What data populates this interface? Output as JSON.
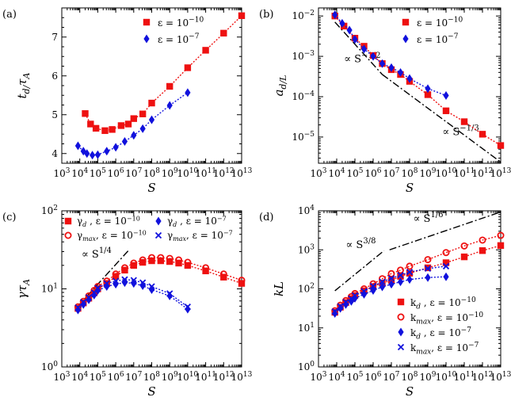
{
  "figure": {
    "panel_labels": [
      "(a)",
      "(b)",
      "(c)",
      "(d)"
    ],
    "colors": {
      "red": "#ee1111",
      "blue": "#1111dd",
      "black": "#000000"
    }
  },
  "chart_data": [
    {
      "id": "a",
      "type": "scatter",
      "xscale": "log",
      "yscale": "linear",
      "xlabel": "S",
      "ylabel": "t_d/τ_A",
      "xlim": [
        3,
        13
      ],
      "ylim": [
        3.75,
        7.75
      ],
      "xticks": [
        3,
        4,
        5,
        6,
        7,
        8,
        9,
        10,
        11,
        12,
        13
      ],
      "xtick_labels": [
        "10^3",
        "10^4",
        "10^5",
        "10^6",
        "10^7",
        "10^8",
        "10^9",
        "10^10",
        "10^11",
        "10^12",
        "10^13"
      ],
      "yticks": [
        4,
        5,
        6,
        7
      ],
      "ytick_labels": [
        "4",
        "5",
        "6",
        "7"
      ],
      "legend_position": "top-right",
      "series": [
        {
          "name": "ε = 10^-10",
          "color": "#ee1111",
          "marker": "square",
          "line": "dotted",
          "x": [
            4.3,
            4.6,
            4.9,
            5.4,
            5.8,
            6.3,
            6.7,
            7.0,
            7.5,
            8.0,
            9.0,
            10.0,
            11.0,
            12.0,
            13.0
          ],
          "y": [
            5.03,
            4.76,
            4.65,
            4.59,
            4.62,
            4.72,
            4.76,
            4.9,
            5.02,
            5.3,
            5.73,
            6.21,
            6.66,
            7.1,
            7.55
          ]
        },
        {
          "name": "ε = 10^-7",
          "color": "#1111dd",
          "marker": "diamond",
          "line": "dotted",
          "x": [
            3.9,
            4.2,
            4.4,
            4.7,
            5.0,
            5.5,
            6.0,
            6.5,
            7.0,
            7.5,
            8.0,
            9.0,
            10.0
          ],
          "y": [
            4.2,
            4.06,
            4.0,
            3.96,
            3.97,
            4.06,
            4.16,
            4.31,
            4.47,
            4.64,
            4.87,
            5.24,
            5.57
          ]
        }
      ],
      "annotations": []
    },
    {
      "id": "b",
      "type": "scatter",
      "xscale": "log",
      "yscale": "log",
      "xlabel": "S",
      "ylabel": "a_d/L",
      "xlim": [
        3,
        13
      ],
      "ylim": [
        -5.65,
        -1.8
      ],
      "xticks": [
        3,
        4,
        5,
        6,
        7,
        8,
        9,
        10,
        11,
        12,
        13
      ],
      "xtick_labels": [
        "10^3",
        "10^4",
        "10^5",
        "10^6",
        "10^7",
        "10^8",
        "10^9",
        "10^10",
        "10^11",
        "10^12",
        "10^13"
      ],
      "yticks": [
        -5,
        -4,
        -3,
        -2
      ],
      "ytick_labels": [
        "10^-5",
        "10^-4",
        "10^-3",
        "10^-2"
      ],
      "legend_position": "top-right",
      "series": [
        {
          "name": "ε = 10^-10",
          "color": "#ee1111",
          "marker": "square",
          "line": "dotted",
          "x": [
            3.9,
            4.4,
            5.0,
            5.5,
            6.0,
            6.5,
            7.0,
            7.5,
            8.0,
            9.0,
            10.0,
            11.0,
            12.0,
            13.0
          ],
          "y": [
            -2.0,
            -2.25,
            -2.55,
            -2.75,
            -2.98,
            -3.18,
            -3.33,
            -3.45,
            -3.62,
            -3.95,
            -4.35,
            -4.62,
            -4.93,
            -5.21
          ]
        },
        {
          "name": "ε = 10^-7",
          "color": "#1111dd",
          "marker": "diamond",
          "line": "dotted",
          "x": [
            3.9,
            4.3,
            4.7,
            5.0,
            5.5,
            6.0,
            6.5,
            7.0,
            7.5,
            8.0,
            9.0,
            10.0
          ],
          "y": [
            -1.97,
            -2.18,
            -2.35,
            -2.58,
            -2.82,
            -3.0,
            -3.18,
            -3.28,
            -3.4,
            -3.55,
            -3.8,
            -3.97
          ]
        }
      ],
      "reference_lines": [
        {
          "label": "∝ S^{-1/2}",
          "x": [
            3.9,
            6.5
          ],
          "y": [
            -2.15,
            -3.45
          ]
        },
        {
          "label": "∝ S^{-1/3}",
          "x": [
            6.5,
            13.0
          ],
          "y": [
            -3.45,
            -5.62
          ]
        }
      ],
      "annotations": [
        {
          "text": "∝ S",
          "sup": "−1/2",
          "at_x": 4.4,
          "at_y": -3.15
        },
        {
          "text": "∝ S",
          "sup": "−1/3",
          "at_x": 9.8,
          "at_y": -4.95
        }
      ]
    },
    {
      "id": "c",
      "type": "scatter",
      "xscale": "log",
      "yscale": "log",
      "xlabel": "S",
      "ylabel": "γτ_A",
      "xlim": [
        3,
        13
      ],
      "ylim": [
        0,
        2
      ],
      "xticks": [
        3,
        4,
        5,
        6,
        7,
        8,
        9,
        10,
        11,
        12,
        13
      ],
      "xtick_labels": [
        "10^3",
        "10^4",
        "10^5",
        "10^6",
        "10^7",
        "10^8",
        "10^9",
        "10^10",
        "10^11",
        "10^12",
        "10^13"
      ],
      "yticks": [
        0,
        1,
        2
      ],
      "ytick_labels": [
        "10^0",
        "10^1",
        "10^2"
      ],
      "legend_position": "top",
      "series": [
        {
          "name": "γ_d , ε = 10^-10",
          "color": "#ee1111",
          "marker": "square",
          "line": "dotted",
          "x": [
            3.9,
            4.2,
            4.5,
            4.8,
            5.0,
            5.5,
            6.0,
            6.5,
            7.0,
            7.5,
            8.0,
            8.5,
            9.0,
            9.5,
            10.0,
            11.0,
            12.0,
            13.0
          ],
          "y": [
            0.75,
            0.82,
            0.88,
            0.95,
            1.0,
            1.07,
            1.16,
            1.24,
            1.3,
            1.34,
            1.36,
            1.36,
            1.35,
            1.33,
            1.3,
            1.23,
            1.15,
            1.07
          ]
        },
        {
          "name": "γ_max, ε = 10^-10",
          "color": "#ee1111",
          "marker": "circle",
          "line": "dotted",
          "x": [
            3.9,
            4.2,
            4.5,
            4.8,
            5.0,
            5.5,
            6.0,
            6.5,
            7.0,
            7.5,
            8.0,
            8.5,
            9.0,
            9.5,
            10.0,
            11.0,
            12.0,
            13.0
          ],
          "y": [
            0.77,
            0.84,
            0.91,
            0.98,
            1.03,
            1.1,
            1.19,
            1.27,
            1.33,
            1.37,
            1.4,
            1.4,
            1.39,
            1.37,
            1.34,
            1.27,
            1.19,
            1.11
          ]
        },
        {
          "name": "γ_d , ε = 10^-7",
          "color": "#1111dd",
          "marker": "diamond",
          "line": "dotted",
          "x": [
            3.9,
            4.2,
            4.5,
            4.8,
            5.0,
            5.5,
            6.0,
            6.5,
            7.0,
            7.5,
            8.0,
            9.0,
            10.0
          ],
          "y": [
            0.73,
            0.8,
            0.86,
            0.92,
            0.98,
            1.03,
            1.06,
            1.08,
            1.07,
            1.04,
            0.99,
            0.91,
            0.74
          ]
        },
        {
          "name": "γ_max, ε = 10^-7",
          "color": "#1111dd",
          "marker": "x",
          "line": "dotted",
          "x": [
            3.9,
            4.2,
            4.5,
            4.8,
            5.0,
            5.5,
            6.0,
            6.5,
            7.0,
            7.5,
            8.0,
            9.0,
            10.0
          ],
          "y": [
            0.76,
            0.83,
            0.89,
            0.95,
            1.01,
            1.07,
            1.1,
            1.12,
            1.11,
            1.08,
            1.03,
            0.94,
            0.77
          ]
        }
      ],
      "reference_lines": [
        {
          "label": "∝ S^{1/4}",
          "x": [
            3.9,
            6.7
          ],
          "y": [
            0.78,
            1.49
          ]
        }
      ],
      "annotations": [
        {
          "text": "∝ S",
          "sup": "1/4",
          "at_x": 4.1,
          "at_y": 1.4
        }
      ]
    },
    {
      "id": "d",
      "type": "scatter",
      "xscale": "log",
      "yscale": "log",
      "xlabel": "S",
      "ylabel": "kL",
      "xlim": [
        3,
        13
      ],
      "ylim": [
        0,
        4
      ],
      "xticks": [
        3,
        4,
        5,
        6,
        7,
        8,
        9,
        10,
        11,
        12,
        13
      ],
      "xtick_labels": [
        "10^3",
        "10^4",
        "10^5",
        "10^6",
        "10^7",
        "10^8",
        "10^9",
        "10^10",
        "10^11",
        "10^12",
        "10^13"
      ],
      "yticks": [
        0,
        1,
        2,
        3,
        4
      ],
      "ytick_labels": [
        "10^0",
        "10^1",
        "10^2",
        "10^3",
        "10^4"
      ],
      "legend_position": "bottom-right",
      "series": [
        {
          "name": "k_d , ε = 10^-10",
          "color": "#ee1111",
          "marker": "square",
          "line": "dotted",
          "x": [
            3.9,
            4.2,
            4.5,
            4.8,
            5.0,
            5.5,
            6.0,
            6.5,
            7.0,
            7.5,
            8.0,
            9.0,
            10.0,
            11.0,
            12.0,
            13.0
          ],
          "y": [
            1.4,
            1.53,
            1.65,
            1.75,
            1.83,
            1.95,
            2.06,
            2.15,
            2.22,
            2.32,
            2.4,
            2.54,
            2.67,
            2.82,
            2.98,
            3.11
          ]
        },
        {
          "name": "k_max, ε = 10^-10",
          "color": "#ee1111",
          "marker": "circle",
          "line": "dotted",
          "x": [
            3.9,
            4.2,
            4.5,
            4.8,
            5.0,
            5.5,
            6.0,
            6.5,
            7.0,
            7.5,
            8.0,
            9.0,
            10.0,
            11.0,
            12.0,
            13.0
          ],
          "y": [
            1.44,
            1.58,
            1.7,
            1.8,
            1.88,
            2.0,
            2.13,
            2.26,
            2.39,
            2.48,
            2.58,
            2.75,
            2.93,
            3.1,
            3.25,
            3.37
          ]
        },
        {
          "name": "k_d , ε = 10^-7",
          "color": "#1111dd",
          "marker": "diamond",
          "line": "dotted",
          "x": [
            3.9,
            4.2,
            4.5,
            4.8,
            5.0,
            5.5,
            6.0,
            6.5,
            7.0,
            7.5,
            8.0,
            9.0,
            10.0
          ],
          "y": [
            1.37,
            1.5,
            1.6,
            1.68,
            1.76,
            1.86,
            1.96,
            2.05,
            2.12,
            2.18,
            2.24,
            2.29,
            2.31
          ]
        },
        {
          "name": "k_max, ε = 10^-7",
          "color": "#1111dd",
          "marker": "x",
          "line": "dotted",
          "x": [
            3.9,
            4.2,
            4.5,
            4.8,
            5.0,
            5.5,
            6.0,
            6.5,
            7.0,
            7.5,
            8.0,
            9.0,
            10.0
          ],
          "y": [
            1.42,
            1.55,
            1.66,
            1.75,
            1.83,
            1.94,
            2.07,
            2.18,
            2.27,
            2.35,
            2.43,
            2.52,
            2.58
          ]
        }
      ],
      "reference_lines": [
        {
          "label": "∝ S^{3/8}",
          "x": [
            3.9,
            6.6
          ],
          "y": [
            1.95,
            2.98
          ]
        },
        {
          "label": "∝ S^{1/6}",
          "x": [
            6.9,
            13.0
          ],
          "y": [
            3.0,
            3.97
          ]
        }
      ],
      "annotations": [
        {
          "text": "∝ S",
          "sup": "3/8",
          "at_x": 4.5,
          "at_y": 3.05
        },
        {
          "text": "∝ S",
          "sup": "1/6",
          "at_x": 8.2,
          "at_y": 3.72
        }
      ]
    }
  ]
}
